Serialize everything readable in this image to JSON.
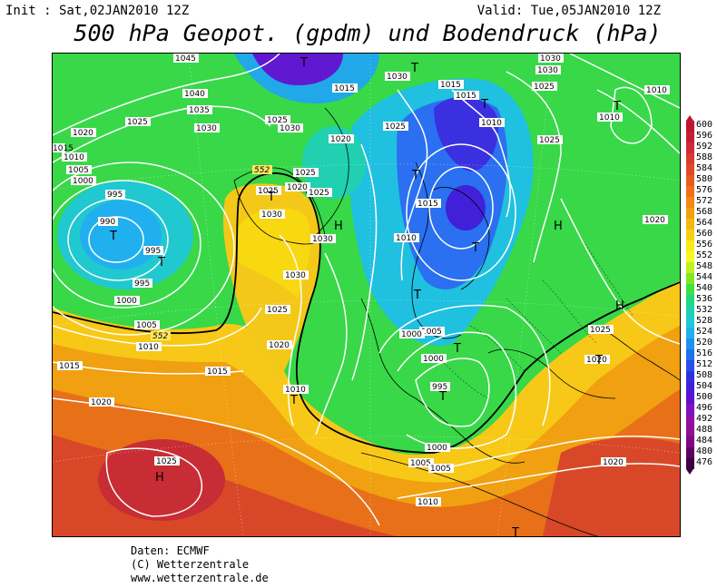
{
  "header": {
    "init_text": "Init : Sat,02JAN2010 12Z",
    "valid_text": "Valid: Tue,05JAN2010 12Z",
    "title": "500 hPa Geopot. (gpdm) und Bodendruck (hPa)"
  },
  "credits": {
    "line1": "Daten: ECMWF",
    "line2": "(C) Wetterzentrale",
    "line3": "www.wetterzentrale.de"
  },
  "legend": {
    "items": [
      {
        "label": "600",
        "color": "#c0142f"
      },
      {
        "label": "596",
        "color": "#c81c34"
      },
      {
        "label": "592",
        "color": "#d02a3a"
      },
      {
        "label": "588",
        "color": "#d83c30"
      },
      {
        "label": "584",
        "color": "#e04a28"
      },
      {
        "label": "580",
        "color": "#e85c20"
      },
      {
        "label": "576",
        "color": "#f07018"
      },
      {
        "label": "572",
        "color": "#f08a10"
      },
      {
        "label": "568",
        "color": "#f0a010"
      },
      {
        "label": "564",
        "color": "#f4b810"
      },
      {
        "label": "560",
        "color": "#f8d010"
      },
      {
        "label": "556",
        "color": "#fce818"
      },
      {
        "label": "552",
        "color": "#f4f820"
      },
      {
        "label": "548",
        "color": "#c0f020"
      },
      {
        "label": "544",
        "color": "#80e820"
      },
      {
        "label": "540",
        "color": "#40e040"
      },
      {
        "label": "536",
        "color": "#20d880"
      },
      {
        "label": "532",
        "color": "#20d0b0"
      },
      {
        "label": "528",
        "color": "#20c8d8"
      },
      {
        "label": "524",
        "color": "#20b0f0"
      },
      {
        "label": "520",
        "color": "#2090f0"
      },
      {
        "label": "516",
        "color": "#2070f0"
      },
      {
        "label": "512",
        "color": "#2850e8"
      },
      {
        "label": "508",
        "color": "#3030e0"
      },
      {
        "label": "504",
        "color": "#4020d8"
      },
      {
        "label": "500",
        "color": "#6010d0"
      },
      {
        "label": "496",
        "color": "#8010c0"
      },
      {
        "label": "492",
        "color": "#9010a8"
      },
      {
        "label": "488",
        "color": "#901090"
      },
      {
        "label": "484",
        "color": "#800880"
      },
      {
        "label": "480",
        "color": "#600060"
      },
      {
        "label": "476",
        "color": "#400040"
      }
    ]
  },
  "map": {
    "pressure_labels": [
      "1045",
      "1040",
      "1035",
      "1030",
      "1025",
      "1020",
      "1015",
      "1010",
      "1005",
      "1000",
      "995",
      "990",
      "1030",
      "1025",
      "1020",
      "1015",
      "1030",
      "1025",
      "1020",
      "1015",
      "1010",
      "1005",
      "1000",
      "995",
      "1030",
      "1025",
      "1020",
      "1015",
      "1010",
      "1025",
      "1020",
      "1015",
      "1010",
      "1005",
      "1025",
      "1020",
      "1010",
      "1005",
      "1010",
      "1015",
      "1025",
      "1030",
      "1035",
      "1030",
      "1025",
      "1020",
      "1010",
      "1000",
      "1005",
      "1010",
      "995",
      "1015",
      "1020",
      "1025"
    ],
    "geopotential_labels": [
      "552",
      "552",
      "552"
    ],
    "high_marker": "H",
    "low_marker": "T"
  }
}
